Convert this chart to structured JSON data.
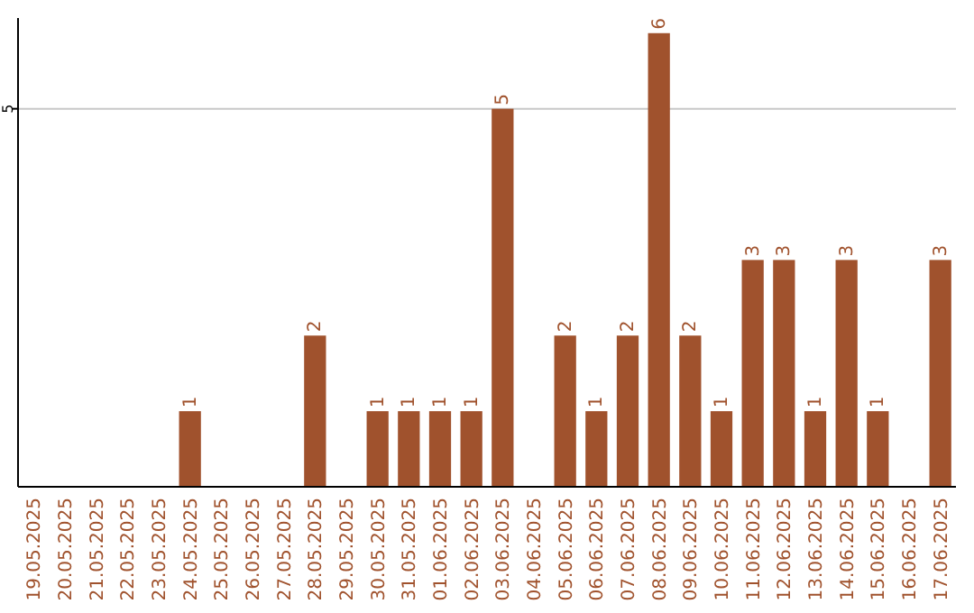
{
  "chart_data": {
    "type": "bar",
    "categories": [
      "19.05.2025",
      "20.05.2025",
      "21.05.2025",
      "22.05.2025",
      "23.05.2025",
      "24.05.2025",
      "25.05.2025",
      "26.05.2025",
      "27.05.2025",
      "28.05.2025",
      "29.05.2025",
      "30.05.2025",
      "31.05.2025",
      "01.06.2025",
      "02.06.2025",
      "03.06.2025",
      "04.06.2025",
      "05.06.2025",
      "06.06.2025",
      "07.06.2025",
      "08.06.2025",
      "09.06.2025",
      "10.06.2025",
      "11.06.2025",
      "12.06.2025",
      "13.06.2025",
      "14.06.2025",
      "15.06.2025",
      "16.06.2025",
      "17.06.2025"
    ],
    "values": [
      0,
      0,
      0,
      0,
      0,
      1,
      0,
      0,
      0,
      2,
      0,
      1,
      1,
      1,
      1,
      5,
      0,
      2,
      1,
      2,
      6,
      2,
      1,
      3,
      3,
      1,
      3,
      1,
      0,
      3
    ],
    "value_labels": [
      null,
      null,
      null,
      null,
      null,
      "1",
      null,
      null,
      null,
      "2",
      null,
      "1",
      "1",
      "1",
      "1",
      "5",
      null,
      "2",
      "1",
      "2",
      "6",
      "2",
      "1",
      "3",
      "3",
      "1",
      "3",
      "1",
      null,
      "3"
    ],
    "color": "#a0522d",
    "ylim": [
      0,
      6.2
    ],
    "yticks": [
      5
    ],
    "grid": "y"
  }
}
